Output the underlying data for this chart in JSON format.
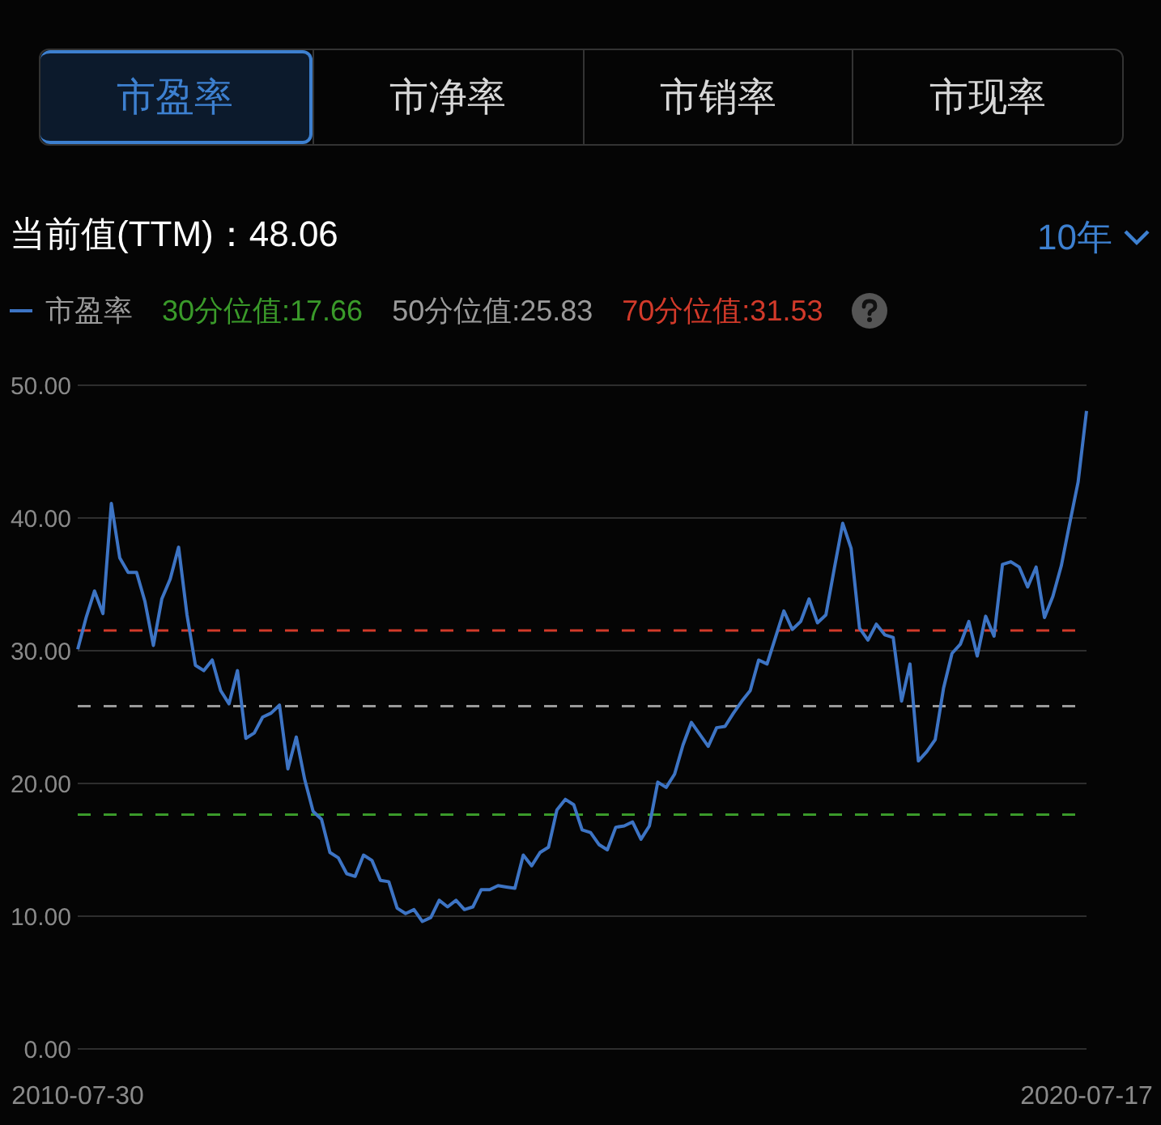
{
  "chart_data": {
    "type": "line",
    "title": "当前值(TTM)：48.06",
    "annotations": [
      "市盈率",
      "市净率",
      "市销率",
      "市现率",
      "10年"
    ],
    "categories": [
      "2010-07-30",
      null,
      null,
      null,
      null,
      null,
      null,
      null,
      null,
      null,
      null,
      null,
      null,
      null,
      null,
      null,
      null,
      null,
      null,
      null,
      null,
      null,
      null,
      null,
      null,
      null,
      null,
      null,
      null,
      null,
      null,
      null,
      null,
      null,
      null,
      null,
      null,
      null,
      null,
      null,
      null,
      null,
      null,
      null,
      null,
      null,
      null,
      null,
      null,
      null,
      null,
      null,
      null,
      null,
      null,
      null,
      null,
      null,
      null,
      null,
      null,
      null,
      null,
      null,
      null,
      null,
      null,
      null,
      null,
      null,
      null,
      null,
      null,
      null,
      null,
      null,
      null,
      null,
      null,
      null,
      null,
      null,
      null,
      null,
      null,
      null,
      null,
      null,
      null,
      null,
      null,
      null,
      null,
      null,
      null,
      null,
      null,
      null,
      null,
      null,
      null,
      null,
      null,
      null,
      null,
      null,
      null,
      null,
      null,
      null,
      null,
      null,
      null,
      null,
      null,
      null,
      null,
      null,
      null,
      null,
      "2020-07-17"
    ],
    "series": [
      {
        "name": "市盈率",
        "color": "#3d74c4",
        "values": [
          30.1,
          32.5,
          34.5,
          32.8,
          41.1,
          37.0,
          35.9,
          35.9,
          33.7,
          30.4,
          33.9,
          35.4,
          37.8,
          32.7,
          28.9,
          28.5,
          29.3,
          27.0,
          26.0,
          28.5,
          23.4,
          23.8,
          25.0,
          25.3,
          25.9,
          21.1,
          23.5,
          20.3,
          17.9,
          17.3,
          14.8,
          14.4,
          13.2,
          13.0,
          14.6,
          14.2,
          12.7,
          12.6,
          10.6,
          10.2,
          10.5,
          9.6,
          9.9,
          11.2,
          10.7,
          11.2,
          10.5,
          10.7,
          12.0,
          12.0,
          12.3,
          12.2,
          12.1,
          14.6,
          13.8,
          14.8,
          15.2,
          18.0,
          18.8,
          18.4,
          16.5,
          16.3,
          15.4,
          15.0,
          16.7,
          16.8,
          17.1,
          15.8,
          16.8,
          20.1,
          19.7,
          20.7,
          22.9,
          24.6,
          23.7,
          22.8,
          24.2,
          24.3,
          25.3,
          26.2,
          27.0,
          29.3,
          29.0,
          31.0,
          33.0,
          31.6,
          32.2,
          33.9,
          32.1,
          32.7,
          36.2,
          39.6,
          37.7,
          31.7,
          30.8,
          32.0,
          31.2,
          31.0,
          26.2,
          29.0,
          21.7,
          22.4,
          23.3,
          27.2,
          29.8,
          30.5,
          32.2,
          29.6,
          32.6,
          31.1,
          36.5,
          36.7,
          36.3,
          34.8,
          36.3,
          32.5,
          34.1,
          36.4,
          39.6,
          42.7,
          48.06
        ]
      }
    ],
    "ref_lines": [
      {
        "axis": "y",
        "value": 17.66,
        "label": "30分位值:17.66",
        "color": "#3a9a2a",
        "line_style": "dashed"
      },
      {
        "axis": "y",
        "value": 25.83,
        "label": "50分位值:25.83",
        "color": "#9a9a9a",
        "line_style": "dashed"
      },
      {
        "axis": "y",
        "value": 31.53,
        "label": "70分位值:31.53",
        "color": "#d23a2a",
        "line_style": "dashed"
      }
    ],
    "ylim": [
      0,
      50
    ],
    "yticks": [
      {
        "value": 0,
        "label": "0.00"
      },
      {
        "value": 10,
        "label": "10.00"
      },
      {
        "value": 20,
        "label": "20.00"
      },
      {
        "value": 30,
        "label": "30.00"
      },
      {
        "value": 40,
        "label": "40.00"
      },
      {
        "value": 50,
        "label": "50.00"
      }
    ],
    "grid": "y",
    "legend": "top left",
    "marker": "none",
    "line_style": "solid"
  }
}
